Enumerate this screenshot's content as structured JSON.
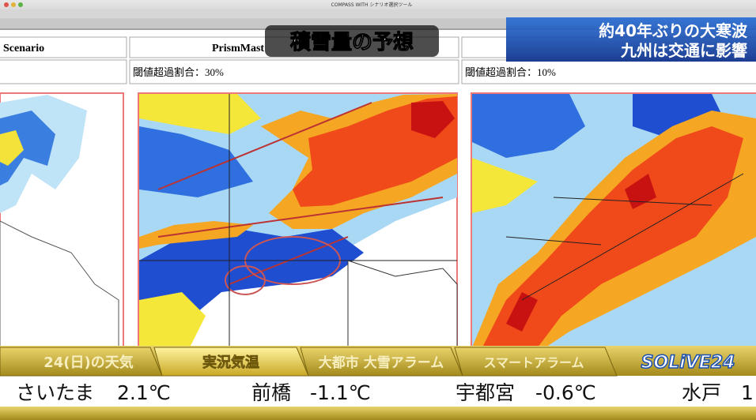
{
  "browser": {
    "window_title": "COMPASS WITH シナリオ選択ツール"
  },
  "panels": [
    {
      "header": "Scenario"
    },
    {
      "header": "PrismMast",
      "threshold": "閾値超過割合：30%"
    },
    {
      "threshold": "閾値超過割合：10%"
    }
  ],
  "overlay": {
    "title": "積雪量の予想",
    "headline": [
      "約40年ぶりの大寒波",
      "九州は交通に影響"
    ]
  },
  "ticker": {
    "tabs": [
      "24(日)の天気",
      "実況気温",
      "大都市 大雪アラーム",
      "スマートアラーム"
    ],
    "logo": "SOLiVE24",
    "items": [
      {
        "city": "さいたま",
        "temp": "2.1℃"
      },
      {
        "city": "前橋",
        "temp": "-1.1℃"
      },
      {
        "city": "宇都宮",
        "temp": "-0.6℃"
      },
      {
        "city": "水戸",
        "temp": "1"
      }
    ]
  }
}
